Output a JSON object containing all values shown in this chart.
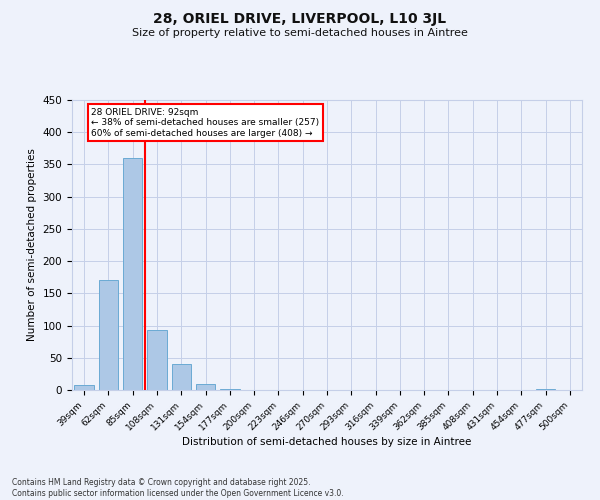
{
  "title": "28, ORIEL DRIVE, LIVERPOOL, L10 3JL",
  "subtitle": "Size of property relative to semi-detached houses in Aintree",
  "xlabel": "Distribution of semi-detached houses by size in Aintree",
  "ylabel": "Number of semi-detached properties",
  "categories": [
    "39sqm",
    "62sqm",
    "85sqm",
    "108sqm",
    "131sqm",
    "154sqm",
    "177sqm",
    "200sqm",
    "223sqm",
    "246sqm",
    "270sqm",
    "293sqm",
    "316sqm",
    "339sqm",
    "362sqm",
    "385sqm",
    "408sqm",
    "431sqm",
    "454sqm",
    "477sqm",
    "500sqm"
  ],
  "bar_values": [
    7,
    170,
    360,
    93,
    40,
    9,
    2,
    0,
    0,
    0,
    0,
    0,
    0,
    0,
    0,
    0,
    0,
    0,
    0,
    2,
    0
  ],
  "bar_color": "#adc8e6",
  "bar_edge_color": "#6aaad4",
  "red_line_x": 2.5,
  "annotation_title": "28 ORIEL DRIVE: 92sqm",
  "annotation_line1": "← 38% of semi-detached houses are smaller (257)",
  "annotation_line2": "60% of semi-detached houses are larger (408) →",
  "ylim": [
    0,
    450
  ],
  "yticks": [
    0,
    50,
    100,
    150,
    200,
    250,
    300,
    350,
    400,
    450
  ],
  "background_color": "#eef2fb",
  "grid_color": "#c5cfe8",
  "footer_line1": "Contains HM Land Registry data © Crown copyright and database right 2025.",
  "footer_line2": "Contains public sector information licensed under the Open Government Licence v3.0."
}
